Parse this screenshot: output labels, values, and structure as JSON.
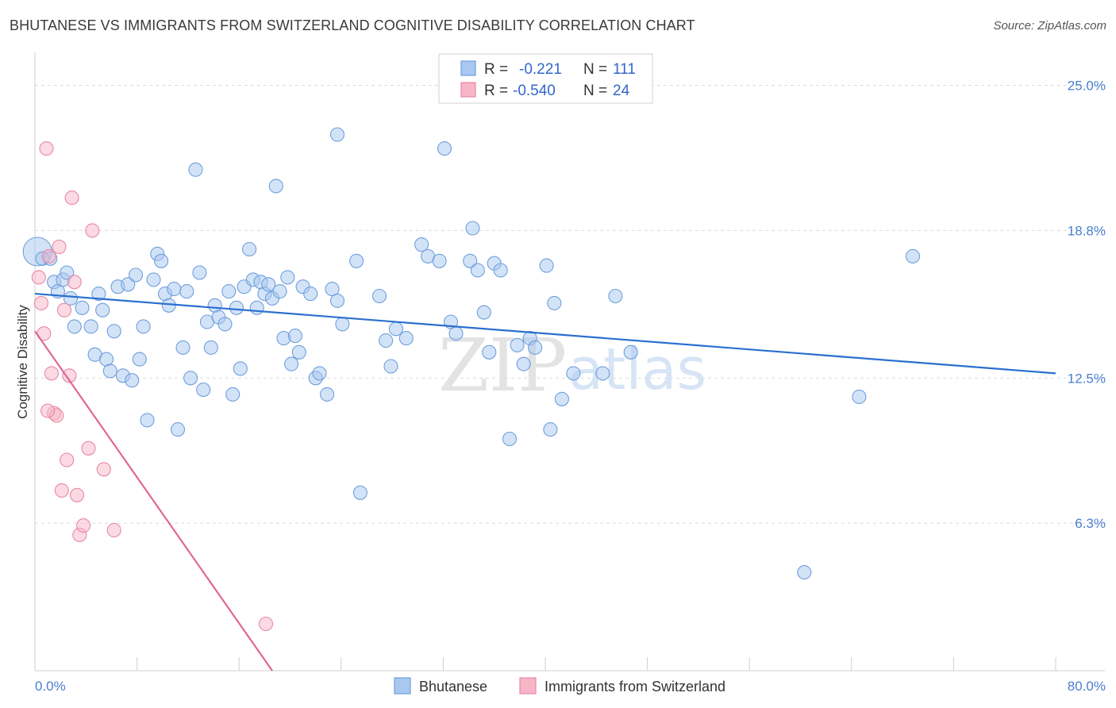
{
  "header": {
    "title": "BHUTANESE VS IMMIGRANTS FROM SWITZERLAND COGNITIVE DISABILITY CORRELATION CHART",
    "source": "Source: ZipAtlas.com"
  },
  "watermark": {
    "zip": "ZIP",
    "atlas": "atlas"
  },
  "stats": [
    {
      "r_label": "R =",
      "r_value": "-0.221",
      "n_label": "N =",
      "n_value": "111",
      "color": "#a8c8f0",
      "stroke": "#6f9fdc"
    },
    {
      "r_label": "R =",
      "r_value": "-0.540",
      "n_label": "N =",
      "n_value": "24",
      "color": "#f7b6c8",
      "stroke": "#e888a6"
    }
  ],
  "chart_data": {
    "type": "scatter",
    "title": "BHUTANESE VS IMMIGRANTS FROM SWITZERLAND COGNITIVE DISABILITY CORRELATION CHART",
    "xlabel": "",
    "ylabel": "Cognitive Disability",
    "xlim": [
      0,
      80
    ],
    "ylim": [
      0,
      26
    ],
    "x_tick_labels": [
      "0.0%",
      "80.0%"
    ],
    "y_ticks": [
      6.3,
      12.5,
      18.8,
      25.0
    ],
    "y_tick_labels": [
      "6.3%",
      "12.5%",
      "18.8%",
      "25.0%"
    ],
    "grid": true,
    "legend_position": "bottom-center",
    "series": [
      {
        "name": "Bhutanese",
        "color": "#a8c8f0",
        "stroke": "#6f9fdc",
        "trend_color": "#2b6fcf",
        "trend": [
          [
            0,
            16.1
          ],
          [
            80,
            12.7
          ]
        ],
        "points": [
          [
            0.2,
            17.9
          ],
          [
            0.6,
            17.6
          ],
          [
            1.2,
            17.6
          ],
          [
            1.5,
            16.6
          ],
          [
            1.8,
            16.2
          ],
          [
            2.2,
            16.7
          ],
          [
            2.5,
            17.0
          ],
          [
            2.8,
            15.9
          ],
          [
            3.1,
            14.7
          ],
          [
            3.7,
            15.5
          ],
          [
            4.4,
            14.7
          ],
          [
            4.7,
            13.5
          ],
          [
            5.0,
            16.1
          ],
          [
            5.3,
            15.4
          ],
          [
            5.6,
            13.3
          ],
          [
            5.9,
            12.8
          ],
          [
            6.2,
            14.5
          ],
          [
            6.5,
            16.4
          ],
          [
            6.9,
            12.6
          ],
          [
            7.3,
            16.5
          ],
          [
            7.6,
            12.4
          ],
          [
            7.9,
            16.9
          ],
          [
            8.2,
            13.3
          ],
          [
            8.5,
            14.7
          ],
          [
            8.8,
            10.7
          ],
          [
            9.3,
            16.7
          ],
          [
            9.6,
            17.8
          ],
          [
            9.9,
            17.5
          ],
          [
            10.2,
            16.1
          ],
          [
            10.5,
            15.6
          ],
          [
            10.9,
            16.3
          ],
          [
            11.2,
            10.3
          ],
          [
            11.6,
            13.8
          ],
          [
            11.9,
            16.2
          ],
          [
            12.2,
            12.5
          ],
          [
            12.6,
            21.4
          ],
          [
            12.9,
            17.0
          ],
          [
            13.2,
            12.0
          ],
          [
            13.5,
            14.9
          ],
          [
            13.8,
            13.8
          ],
          [
            14.1,
            15.6
          ],
          [
            14.4,
            15.1
          ],
          [
            14.9,
            14.8
          ],
          [
            15.2,
            16.2
          ],
          [
            15.5,
            11.8
          ],
          [
            15.8,
            15.5
          ],
          [
            16.1,
            12.9
          ],
          [
            16.4,
            16.4
          ],
          [
            16.8,
            18.0
          ],
          [
            17.1,
            16.7
          ],
          [
            17.4,
            15.5
          ],
          [
            17.7,
            16.6
          ],
          [
            18.0,
            16.1
          ],
          [
            18.3,
            16.5
          ],
          [
            18.6,
            15.9
          ],
          [
            18.9,
            20.7
          ],
          [
            19.2,
            16.2
          ],
          [
            19.5,
            14.2
          ],
          [
            19.8,
            16.8
          ],
          [
            20.1,
            13.1
          ],
          [
            20.4,
            14.3
          ],
          [
            20.7,
            13.6
          ],
          [
            21.0,
            16.4
          ],
          [
            21.6,
            16.1
          ],
          [
            22.0,
            12.5
          ],
          [
            22.3,
            12.7
          ],
          [
            22.9,
            11.8
          ],
          [
            23.3,
            16.3
          ],
          [
            23.7,
            15.8
          ],
          [
            24.1,
            14.8
          ],
          [
            23.7,
            22.9
          ],
          [
            25.2,
            17.5
          ],
          [
            25.5,
            7.6
          ],
          [
            27.0,
            16.0
          ],
          [
            27.5,
            14.1
          ],
          [
            27.9,
            13.0
          ],
          [
            28.3,
            14.6
          ],
          [
            29.1,
            14.2
          ],
          [
            30.8,
            17.7
          ],
          [
            30.3,
            18.2
          ],
          [
            31.7,
            17.5
          ],
          [
            32.1,
            22.3
          ],
          [
            32.6,
            14.9
          ],
          [
            33.0,
            14.4
          ],
          [
            34.3,
            18.9
          ],
          [
            34.1,
            17.5
          ],
          [
            34.7,
            17.1
          ],
          [
            35.2,
            15.3
          ],
          [
            35.6,
            13.6
          ],
          [
            36.0,
            17.4
          ],
          [
            36.5,
            17.1
          ],
          [
            37.2,
            9.9
          ],
          [
            37.8,
            13.9
          ],
          [
            38.3,
            13.1
          ],
          [
            38.8,
            14.2
          ],
          [
            39.2,
            13.8
          ],
          [
            40.1,
            17.3
          ],
          [
            40.4,
            10.3
          ],
          [
            40.7,
            15.7
          ],
          [
            41.3,
            11.6
          ],
          [
            42.2,
            12.7
          ],
          [
            44.5,
            12.7
          ],
          [
            45.5,
            16.0
          ],
          [
            46.7,
            13.6
          ],
          [
            60.3,
            4.2
          ],
          [
            64.6,
            11.7
          ],
          [
            68.8,
            17.7
          ]
        ]
      },
      {
        "name": "Immigrants from Switzerland",
        "color": "#f7b6c8",
        "stroke": "#e888a6",
        "trend_color": "#e0669a",
        "trend": [
          [
            0,
            14.5
          ],
          [
            18.6,
            0
          ]
        ],
        "points": [
          [
            0.3,
            16.8
          ],
          [
            0.5,
            15.7
          ],
          [
            0.7,
            14.4
          ],
          [
            0.9,
            22.3
          ],
          [
            1.1,
            17.7
          ],
          [
            1.3,
            12.7
          ],
          [
            1.5,
            11.0
          ],
          [
            1.7,
            10.9
          ],
          [
            1.9,
            18.1
          ],
          [
            2.1,
            7.7
          ],
          [
            2.3,
            15.4
          ],
          [
            2.5,
            9.0
          ],
          [
            2.7,
            12.6
          ],
          [
            2.9,
            20.2
          ],
          [
            3.1,
            16.6
          ],
          [
            3.3,
            7.5
          ],
          [
            3.5,
            5.8
          ],
          [
            3.8,
            6.2
          ],
          [
            4.2,
            9.5
          ],
          [
            4.5,
            18.8
          ],
          [
            5.4,
            8.6
          ],
          [
            6.2,
            6.0
          ],
          [
            18.1,
            2.0
          ],
          [
            1.0,
            11.1
          ]
        ]
      }
    ]
  },
  "legend": {
    "items": [
      {
        "label": "Bhutanese",
        "color": "#a8c8f0",
        "stroke": "#6f9fdc"
      },
      {
        "label": "Immigrants from Switzerland",
        "color": "#f7b6c8",
        "stroke": "#e888a6"
      }
    ]
  }
}
